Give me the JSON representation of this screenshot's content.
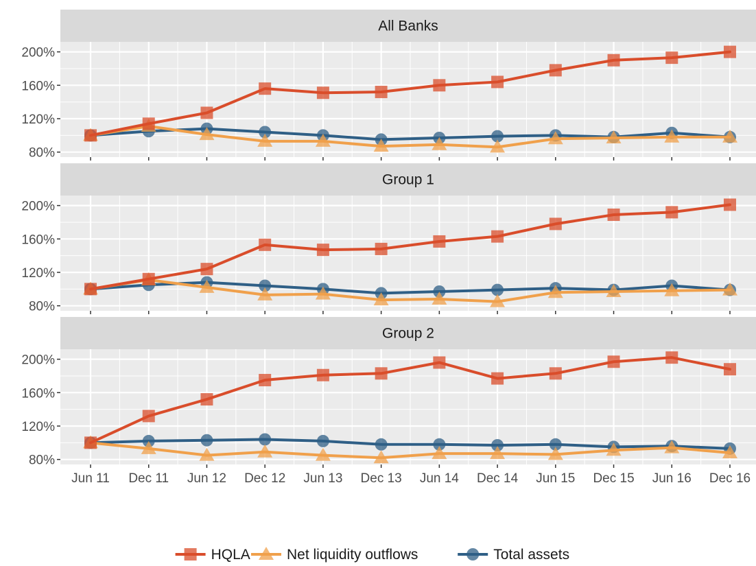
{
  "chart_data": {
    "type": "line",
    "facets": [
      "All Banks",
      "Group 1",
      "Group 2"
    ],
    "x": [
      "Jun 11",
      "Dec 11",
      "Jun 12",
      "Dec 12",
      "Jun 13",
      "Dec 13",
      "Jun 14",
      "Dec 14",
      "Jun 15",
      "Dec 15",
      "Jun 16",
      "Dec 16"
    ],
    "ylim": [
      74,
      212
    ],
    "yticks": [
      80,
      120,
      160,
      200
    ],
    "ytick_labels": [
      "80%",
      "120%",
      "160%",
      "200%"
    ],
    "grid": true,
    "legend_position": "bottom",
    "series": [
      {
        "name": "HQLA",
        "marker": "square",
        "color": "#d94d2b"
      },
      {
        "name": "Net liquidity outflows",
        "marker": "triangle",
        "color": "#f0a04b"
      },
      {
        "name": "Total assets",
        "marker": "circle",
        "color": "#2f5f86"
      }
    ],
    "panels": [
      {
        "title": "All Banks",
        "values": {
          "HQLA": [
            100,
            114,
            127,
            156,
            151,
            152,
            160,
            164,
            178,
            190,
            193,
            200
          ],
          "Net liquidity outflows": [
            100,
            111,
            101,
            93,
            93,
            87,
            89,
            86,
            96,
            97,
            98,
            98
          ],
          "Total assets": [
            100,
            105,
            108,
            104,
            100,
            95,
            97,
            99,
            100,
            98,
            103,
            98
          ]
        }
      },
      {
        "title": "Group 1",
        "values": {
          "HQLA": [
            100,
            112,
            124,
            153,
            147,
            148,
            157,
            163,
            178,
            189,
            192,
            201
          ],
          "Net liquidity outflows": [
            100,
            111,
            102,
            93,
            94,
            87,
            88,
            85,
            96,
            97,
            98,
            99
          ],
          "Total assets": [
            100,
            105,
            108,
            104,
            100,
            95,
            97,
            99,
            101,
            99,
            104,
            99
          ]
        }
      },
      {
        "title": "Group 2",
        "values": {
          "HQLA": [
            100,
            132,
            152,
            175,
            181,
            183,
            196,
            177,
            183,
            197,
            202,
            188
          ],
          "Net liquidity outflows": [
            100,
            93,
            85,
            89,
            85,
            82,
            87,
            87,
            86,
            91,
            94,
            88
          ],
          "Total assets": [
            100,
            102,
            103,
            104,
            102,
            98,
            98,
            97,
            98,
            95,
            96,
            93
          ]
        }
      }
    ]
  }
}
